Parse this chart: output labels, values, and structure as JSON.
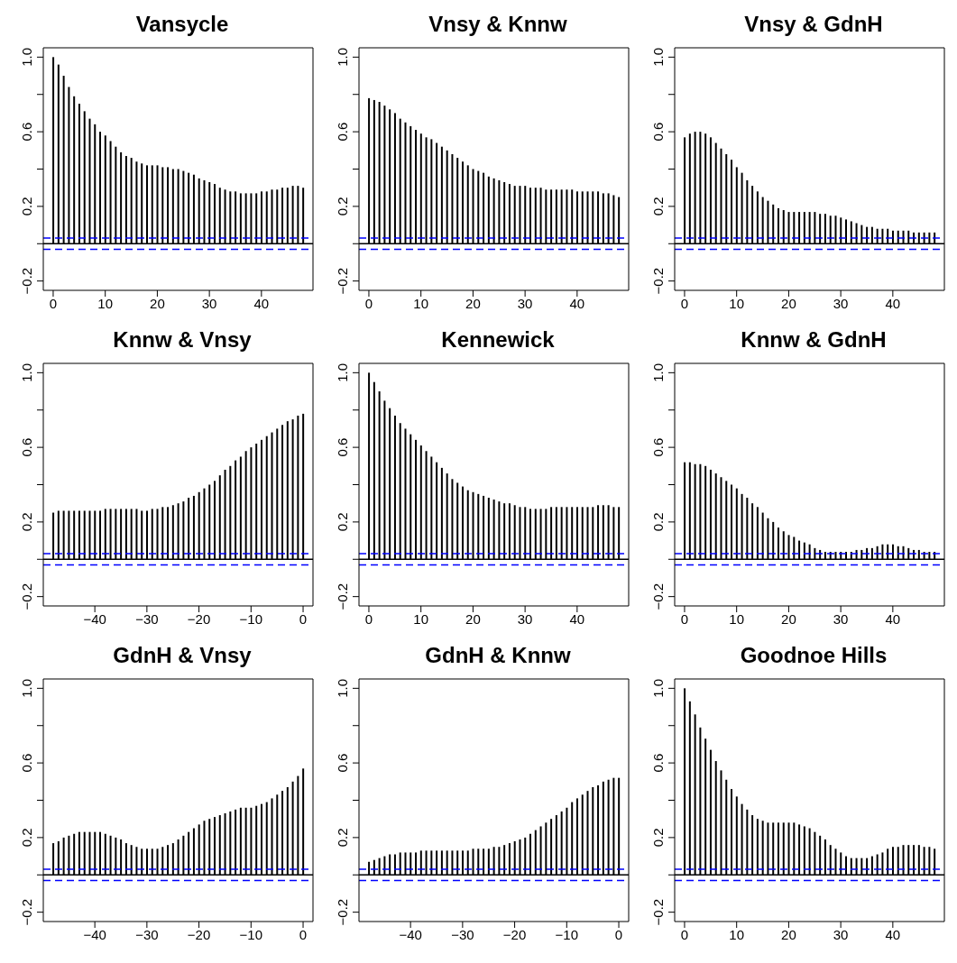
{
  "chart_data": [
    {
      "type": "bar",
      "title": "Vansycle",
      "color": "#000000",
      "x": [
        0,
        1,
        2,
        3,
        4,
        5,
        6,
        7,
        8,
        9,
        10,
        11,
        12,
        13,
        14,
        15,
        16,
        17,
        18,
        19,
        20,
        21,
        22,
        23,
        24,
        25,
        26,
        27,
        28,
        29,
        30,
        31,
        32,
        33,
        34,
        35,
        36,
        37,
        38,
        39,
        40,
        41,
        42,
        43,
        44,
        45,
        46,
        47,
        48
      ],
      "values": [
        1.0,
        0.96,
        0.9,
        0.84,
        0.79,
        0.75,
        0.71,
        0.67,
        0.64,
        0.6,
        0.58,
        0.55,
        0.52,
        0.49,
        0.47,
        0.46,
        0.44,
        0.43,
        0.42,
        0.42,
        0.42,
        0.41,
        0.41,
        0.4,
        0.4,
        0.39,
        0.38,
        0.37,
        0.35,
        0.34,
        0.33,
        0.32,
        0.3,
        0.29,
        0.28,
        0.28,
        0.27,
        0.27,
        0.27,
        0.27,
        0.28,
        0.28,
        0.29,
        0.29,
        0.3,
        0.3,
        0.31,
        0.31,
        0.3
      ],
      "xlim": [
        -1.9,
        49.9
      ],
      "xticks": [
        0,
        10,
        20,
        30,
        40
      ],
      "ylim": [
        -0.25,
        1.05
      ],
      "yticks": [
        -0.2,
        {
          "value": 0,
          "label": null
        },
        0.2,
        {
          "value": 0.4,
          "label": null
        },
        0.6,
        {
          "value": 0.8,
          "label": null
        },
        {
          "value": 1,
          "label": "1.0"
        }
      ],
      "ref_lines": [
        {
          "axis": "y",
          "value": 0,
          "color": "#000000",
          "line_style": "solid"
        },
        {
          "axis": "y",
          "value": 0.03,
          "color": "#0000ff",
          "line_style": "dashed"
        },
        {
          "axis": "y",
          "value": -0.03,
          "color": "#0000ff",
          "line_style": "dashed"
        }
      ]
    },
    {
      "type": "bar",
      "title": "Vnsy & Knnw",
      "color": "#000000",
      "x": [
        0,
        1,
        2,
        3,
        4,
        5,
        6,
        7,
        8,
        9,
        10,
        11,
        12,
        13,
        14,
        15,
        16,
        17,
        18,
        19,
        20,
        21,
        22,
        23,
        24,
        25,
        26,
        27,
        28,
        29,
        30,
        31,
        32,
        33,
        34,
        35,
        36,
        37,
        38,
        39,
        40,
        41,
        42,
        43,
        44,
        45,
        46,
        47,
        48
      ],
      "values": [
        0.78,
        0.77,
        0.76,
        0.74,
        0.72,
        0.7,
        0.67,
        0.65,
        0.63,
        0.61,
        0.59,
        0.57,
        0.56,
        0.54,
        0.52,
        0.5,
        0.48,
        0.46,
        0.44,
        0.42,
        0.4,
        0.39,
        0.38,
        0.36,
        0.35,
        0.34,
        0.33,
        0.32,
        0.31,
        0.31,
        0.31,
        0.3,
        0.3,
        0.3,
        0.29,
        0.29,
        0.29,
        0.29,
        0.29,
        0.29,
        0.28,
        0.28,
        0.28,
        0.28,
        0.28,
        0.27,
        0.27,
        0.26,
        0.25
      ],
      "xlim": [
        -1.9,
        49.9
      ],
      "xticks": [
        0,
        10,
        20,
        30,
        40
      ],
      "ylim": [
        -0.25,
        1.05
      ],
      "yticks": [
        -0.2,
        {
          "value": 0,
          "label": null
        },
        0.2,
        {
          "value": 0.4,
          "label": null
        },
        0.6,
        {
          "value": 0.8,
          "label": null
        },
        {
          "value": 1,
          "label": "1.0"
        }
      ],
      "ref_lines": [
        {
          "axis": "y",
          "value": 0,
          "color": "#000000",
          "line_style": "solid"
        },
        {
          "axis": "y",
          "value": 0.03,
          "color": "#0000ff",
          "line_style": "dashed"
        },
        {
          "axis": "y",
          "value": -0.03,
          "color": "#0000ff",
          "line_style": "dashed"
        }
      ]
    },
    {
      "type": "bar",
      "title": "Vnsy & GdnH",
      "color": "#000000",
      "x": [
        0,
        1,
        2,
        3,
        4,
        5,
        6,
        7,
        8,
        9,
        10,
        11,
        12,
        13,
        14,
        15,
        16,
        17,
        18,
        19,
        20,
        21,
        22,
        23,
        24,
        25,
        26,
        27,
        28,
        29,
        30,
        31,
        32,
        33,
        34,
        35,
        36,
        37,
        38,
        39,
        40,
        41,
        42,
        43,
        44,
        45,
        46,
        47,
        48
      ],
      "values": [
        0.57,
        0.59,
        0.6,
        0.6,
        0.59,
        0.57,
        0.54,
        0.51,
        0.48,
        0.45,
        0.41,
        0.38,
        0.34,
        0.31,
        0.28,
        0.25,
        0.23,
        0.21,
        0.19,
        0.18,
        0.17,
        0.17,
        0.17,
        0.17,
        0.17,
        0.17,
        0.16,
        0.16,
        0.15,
        0.15,
        0.14,
        0.13,
        0.12,
        0.11,
        0.1,
        0.09,
        0.09,
        0.08,
        0.08,
        0.08,
        0.07,
        0.07,
        0.07,
        0.07,
        0.06,
        0.06,
        0.06,
        0.06,
        0.06
      ],
      "xlim": [
        -1.9,
        49.9
      ],
      "xticks": [
        0,
        10,
        20,
        30,
        40
      ],
      "ylim": [
        -0.25,
        1.05
      ],
      "yticks": [
        -0.2,
        {
          "value": 0,
          "label": null
        },
        0.2,
        {
          "value": 0.4,
          "label": null
        },
        0.6,
        {
          "value": 0.8,
          "label": null
        },
        {
          "value": 1,
          "label": "1.0"
        }
      ],
      "ref_lines": [
        {
          "axis": "y",
          "value": 0,
          "color": "#000000",
          "line_style": "solid"
        },
        {
          "axis": "y",
          "value": 0.03,
          "color": "#0000ff",
          "line_style": "dashed"
        },
        {
          "axis": "y",
          "value": -0.03,
          "color": "#0000ff",
          "line_style": "dashed"
        }
      ]
    },
    {
      "type": "bar",
      "title": "Knnw & Vnsy",
      "color": "#000000",
      "x": [
        -48,
        -47,
        -46,
        -45,
        -44,
        -43,
        -42,
        -41,
        -40,
        -39,
        -38,
        -37,
        -36,
        -35,
        -34,
        -33,
        -32,
        -31,
        -30,
        -29,
        -28,
        -27,
        -26,
        -25,
        -24,
        -23,
        -22,
        -21,
        -20,
        -19,
        -18,
        -17,
        -16,
        -15,
        -14,
        -13,
        -12,
        -11,
        -10,
        -9,
        -8,
        -7,
        -6,
        -5,
        -4,
        -3,
        -2,
        -1,
        0
      ],
      "values": [
        0.25,
        0.26,
        0.26,
        0.26,
        0.26,
        0.26,
        0.26,
        0.26,
        0.26,
        0.26,
        0.27,
        0.27,
        0.27,
        0.27,
        0.27,
        0.27,
        0.27,
        0.26,
        0.26,
        0.27,
        0.27,
        0.28,
        0.28,
        0.29,
        0.3,
        0.31,
        0.33,
        0.34,
        0.36,
        0.38,
        0.4,
        0.42,
        0.45,
        0.48,
        0.5,
        0.53,
        0.55,
        0.58,
        0.6,
        0.62,
        0.64,
        0.66,
        0.68,
        0.7,
        0.72,
        0.74,
        0.75,
        0.77,
        0.78
      ],
      "xlim": [
        -49.9,
        1.9
      ],
      "xticks": [
        -40,
        -30,
        -20,
        -10,
        0
      ],
      "ylim": [
        -0.25,
        1.05
      ],
      "yticks": [
        -0.2,
        {
          "value": 0,
          "label": null
        },
        0.2,
        {
          "value": 0.4,
          "label": null
        },
        0.6,
        {
          "value": 0.8,
          "label": null
        },
        {
          "value": 1,
          "label": "1.0"
        }
      ],
      "ref_lines": [
        {
          "axis": "y",
          "value": 0,
          "color": "#000000",
          "line_style": "solid"
        },
        {
          "axis": "y",
          "value": 0.03,
          "color": "#0000ff",
          "line_style": "dashed"
        },
        {
          "axis": "y",
          "value": -0.03,
          "color": "#0000ff",
          "line_style": "dashed"
        }
      ]
    },
    {
      "type": "bar",
      "title": "Kennewick",
      "color": "#000000",
      "x": [
        0,
        1,
        2,
        3,
        4,
        5,
        6,
        7,
        8,
        9,
        10,
        11,
        12,
        13,
        14,
        15,
        16,
        17,
        18,
        19,
        20,
        21,
        22,
        23,
        24,
        25,
        26,
        27,
        28,
        29,
        30,
        31,
        32,
        33,
        34,
        35,
        36,
        37,
        38,
        39,
        40,
        41,
        42,
        43,
        44,
        45,
        46,
        47,
        48
      ],
      "values": [
        1.0,
        0.95,
        0.9,
        0.85,
        0.81,
        0.77,
        0.73,
        0.7,
        0.67,
        0.64,
        0.61,
        0.58,
        0.55,
        0.52,
        0.49,
        0.46,
        0.43,
        0.41,
        0.39,
        0.37,
        0.36,
        0.35,
        0.34,
        0.33,
        0.32,
        0.31,
        0.3,
        0.3,
        0.29,
        0.28,
        0.28,
        0.27,
        0.27,
        0.27,
        0.27,
        0.28,
        0.28,
        0.28,
        0.28,
        0.28,
        0.28,
        0.28,
        0.28,
        0.28,
        0.29,
        0.29,
        0.29,
        0.28,
        0.28
      ],
      "xlim": [
        -1.9,
        49.9
      ],
      "xticks": [
        0,
        10,
        20,
        30,
        40
      ],
      "ylim": [
        -0.25,
        1.05
      ],
      "yticks": [
        -0.2,
        {
          "value": 0,
          "label": null
        },
        0.2,
        {
          "value": 0.4,
          "label": null
        },
        0.6,
        {
          "value": 0.8,
          "label": null
        },
        {
          "value": 1,
          "label": "1.0"
        }
      ],
      "ref_lines": [
        {
          "axis": "y",
          "value": 0,
          "color": "#000000",
          "line_style": "solid"
        },
        {
          "axis": "y",
          "value": 0.03,
          "color": "#0000ff",
          "line_style": "dashed"
        },
        {
          "axis": "y",
          "value": -0.03,
          "color": "#0000ff",
          "line_style": "dashed"
        }
      ]
    },
    {
      "type": "bar",
      "title": "Knnw & GdnH",
      "color": "#000000",
      "x": [
        0,
        1,
        2,
        3,
        4,
        5,
        6,
        7,
        8,
        9,
        10,
        11,
        12,
        13,
        14,
        15,
        16,
        17,
        18,
        19,
        20,
        21,
        22,
        23,
        24,
        25,
        26,
        27,
        28,
        29,
        30,
        31,
        32,
        33,
        34,
        35,
        36,
        37,
        38,
        39,
        40,
        41,
        42,
        43,
        44,
        45,
        46,
        47,
        48
      ],
      "values": [
        0.52,
        0.52,
        0.51,
        0.51,
        0.5,
        0.48,
        0.46,
        0.44,
        0.42,
        0.4,
        0.38,
        0.35,
        0.33,
        0.3,
        0.28,
        0.25,
        0.22,
        0.2,
        0.17,
        0.15,
        0.13,
        0.12,
        0.1,
        0.09,
        0.08,
        0.06,
        0.05,
        0.04,
        0.04,
        0.04,
        0.04,
        0.04,
        0.04,
        0.05,
        0.05,
        0.06,
        0.06,
        0.07,
        0.08,
        0.08,
        0.08,
        0.07,
        0.07,
        0.06,
        0.05,
        0.05,
        0.04,
        0.04,
        0.04
      ],
      "xlim": [
        -1.9,
        49.9
      ],
      "xticks": [
        0,
        10,
        20,
        30,
        40
      ],
      "ylim": [
        -0.25,
        1.05
      ],
      "yticks": [
        -0.2,
        {
          "value": 0,
          "label": null
        },
        0.2,
        {
          "value": 0.4,
          "label": null
        },
        0.6,
        {
          "value": 0.8,
          "label": null
        },
        {
          "value": 1,
          "label": "1.0"
        }
      ],
      "ref_lines": [
        {
          "axis": "y",
          "value": 0,
          "color": "#000000",
          "line_style": "solid"
        },
        {
          "axis": "y",
          "value": 0.03,
          "color": "#0000ff",
          "line_style": "dashed"
        },
        {
          "axis": "y",
          "value": -0.03,
          "color": "#0000ff",
          "line_style": "dashed"
        }
      ]
    },
    {
      "type": "bar",
      "title": "GdnH & Vnsy",
      "color": "#000000",
      "x": [
        -48,
        -47,
        -46,
        -45,
        -44,
        -43,
        -42,
        -41,
        -40,
        -39,
        -38,
        -37,
        -36,
        -35,
        -34,
        -33,
        -32,
        -31,
        -30,
        -29,
        -28,
        -27,
        -26,
        -25,
        -24,
        -23,
        -22,
        -21,
        -20,
        -19,
        -18,
        -17,
        -16,
        -15,
        -14,
        -13,
        -12,
        -11,
        -10,
        -9,
        -8,
        -7,
        -6,
        -5,
        -4,
        -3,
        -2,
        -1,
        0
      ],
      "values": [
        0.17,
        0.18,
        0.2,
        0.21,
        0.22,
        0.23,
        0.23,
        0.23,
        0.23,
        0.23,
        0.22,
        0.21,
        0.2,
        0.19,
        0.17,
        0.16,
        0.15,
        0.14,
        0.14,
        0.14,
        0.14,
        0.15,
        0.16,
        0.17,
        0.19,
        0.21,
        0.23,
        0.25,
        0.27,
        0.29,
        0.3,
        0.31,
        0.32,
        0.33,
        0.34,
        0.35,
        0.36,
        0.36,
        0.36,
        0.37,
        0.38,
        0.39,
        0.41,
        0.43,
        0.45,
        0.47,
        0.5,
        0.53,
        0.57
      ],
      "xlim": [
        -49.9,
        1.9
      ],
      "xticks": [
        -40,
        -30,
        -20,
        -10,
        0
      ],
      "ylim": [
        -0.25,
        1.05
      ],
      "yticks": [
        -0.2,
        {
          "value": 0,
          "label": null
        },
        0.2,
        {
          "value": 0.4,
          "label": null
        },
        0.6,
        {
          "value": 0.8,
          "label": null
        },
        {
          "value": 1,
          "label": "1.0"
        }
      ],
      "ref_lines": [
        {
          "axis": "y",
          "value": 0,
          "color": "#000000",
          "line_style": "solid"
        },
        {
          "axis": "y",
          "value": 0.03,
          "color": "#0000ff",
          "line_style": "dashed"
        },
        {
          "axis": "y",
          "value": -0.03,
          "color": "#0000ff",
          "line_style": "dashed"
        }
      ]
    },
    {
      "type": "bar",
      "title": "GdnH & Knnw",
      "color": "#000000",
      "x": [
        -48,
        -47,
        -46,
        -45,
        -44,
        -43,
        -42,
        -41,
        -40,
        -39,
        -38,
        -37,
        -36,
        -35,
        -34,
        -33,
        -32,
        -31,
        -30,
        -29,
        -28,
        -27,
        -26,
        -25,
        -24,
        -23,
        -22,
        -21,
        -20,
        -19,
        -18,
        -17,
        -16,
        -15,
        -14,
        -13,
        -12,
        -11,
        -10,
        -9,
        -8,
        -7,
        -6,
        -5,
        -4,
        -3,
        -2,
        -1,
        0
      ],
      "values": [
        0.07,
        0.08,
        0.09,
        0.1,
        0.11,
        0.11,
        0.12,
        0.12,
        0.12,
        0.12,
        0.13,
        0.13,
        0.13,
        0.13,
        0.13,
        0.13,
        0.13,
        0.13,
        0.13,
        0.13,
        0.14,
        0.14,
        0.14,
        0.14,
        0.15,
        0.15,
        0.16,
        0.17,
        0.18,
        0.19,
        0.2,
        0.22,
        0.24,
        0.26,
        0.28,
        0.3,
        0.32,
        0.34,
        0.36,
        0.39,
        0.41,
        0.43,
        0.45,
        0.47,
        0.48,
        0.5,
        0.51,
        0.52,
        0.52
      ],
      "xlim": [
        -49.9,
        1.9
      ],
      "xticks": [
        -40,
        -30,
        -20,
        -10,
        0
      ],
      "ylim": [
        -0.25,
        1.05
      ],
      "yticks": [
        -0.2,
        {
          "value": 0,
          "label": null
        },
        0.2,
        {
          "value": 0.4,
          "label": null
        },
        0.6,
        {
          "value": 0.8,
          "label": null
        },
        {
          "value": 1,
          "label": "1.0"
        }
      ],
      "ref_lines": [
        {
          "axis": "y",
          "value": 0,
          "color": "#000000",
          "line_style": "solid"
        },
        {
          "axis": "y",
          "value": 0.03,
          "color": "#0000ff",
          "line_style": "dashed"
        },
        {
          "axis": "y",
          "value": -0.03,
          "color": "#0000ff",
          "line_style": "dashed"
        }
      ]
    },
    {
      "type": "bar",
      "title": "Goodnoe Hills",
      "color": "#000000",
      "x": [
        0,
        1,
        2,
        3,
        4,
        5,
        6,
        7,
        8,
        9,
        10,
        11,
        12,
        13,
        14,
        15,
        16,
        17,
        18,
        19,
        20,
        21,
        22,
        23,
        24,
        25,
        26,
        27,
        28,
        29,
        30,
        31,
        32,
        33,
        34,
        35,
        36,
        37,
        38,
        39,
        40,
        41,
        42,
        43,
        44,
        45,
        46,
        47,
        48
      ],
      "values": [
        1.0,
        0.93,
        0.86,
        0.79,
        0.73,
        0.67,
        0.61,
        0.56,
        0.51,
        0.46,
        0.42,
        0.38,
        0.35,
        0.32,
        0.3,
        0.29,
        0.28,
        0.28,
        0.28,
        0.28,
        0.28,
        0.28,
        0.27,
        0.26,
        0.25,
        0.23,
        0.21,
        0.19,
        0.16,
        0.14,
        0.12,
        0.1,
        0.09,
        0.09,
        0.09,
        0.09,
        0.1,
        0.11,
        0.12,
        0.14,
        0.15,
        0.15,
        0.16,
        0.16,
        0.16,
        0.16,
        0.15,
        0.15,
        0.14
      ],
      "xlim": [
        -1.9,
        49.9
      ],
      "xticks": [
        0,
        10,
        20,
        30,
        40
      ],
      "ylim": [
        -0.25,
        1.05
      ],
      "yticks": [
        -0.2,
        {
          "value": 0,
          "label": null
        },
        0.2,
        {
          "value": 0.4,
          "label": null
        },
        0.6,
        {
          "value": 0.8,
          "label": null
        },
        {
          "value": 1,
          "label": "1.0"
        }
      ],
      "ref_lines": [
        {
          "axis": "y",
          "value": 0,
          "color": "#000000",
          "line_style": "solid"
        },
        {
          "axis": "y",
          "value": 0.03,
          "color": "#0000ff",
          "line_style": "dashed"
        },
        {
          "axis": "y",
          "value": -0.03,
          "color": "#0000ff",
          "line_style": "dashed"
        }
      ]
    }
  ]
}
